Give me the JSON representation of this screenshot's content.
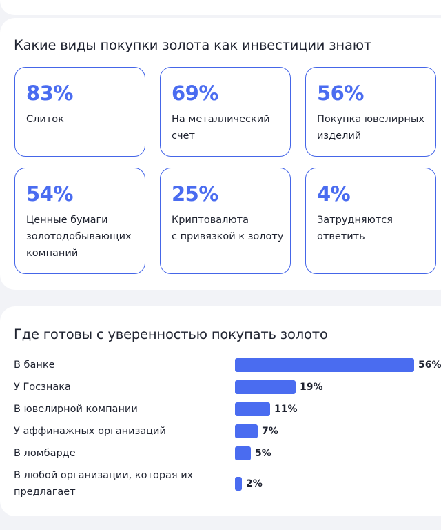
{
  "awareness": {
    "title": "Какие виды покупки золота как инвестиции знают",
    "tiles": [
      {
        "value": "83%",
        "label": "Слиток"
      },
      {
        "value": "69%",
        "label": "На металлический\nсчет"
      },
      {
        "value": "56%",
        "label": "Покупка ювелирных\nизделий"
      },
      {
        "value": "54%",
        "label": "Ценные бумаги\nзолотодобывающих\nкомпаний"
      },
      {
        "value": "25%",
        "label": "Криптовалюта\nс привязкой к золоту"
      },
      {
        "value": "4%",
        "label": "Затрудняются\nответить"
      }
    ]
  },
  "chart_data": {
    "type": "bar",
    "orientation": "horizontal",
    "title": "Где готовы с уверенностью покупать золото",
    "categories": [
      "В банке",
      "У Госзнака",
      "В ювелирной компании",
      "У аффинажных организаций",
      "В ломбарде",
      "В любой организации, которая их\nпредлагает"
    ],
    "values": [
      56,
      19,
      11,
      7,
      5,
      2
    ],
    "value_labels": [
      "56%",
      "19%",
      "11%",
      "7%",
      "5%",
      "2%"
    ],
    "xlim": [
      0,
      56
    ],
    "color": "#4a6cf0",
    "grid": false
  }
}
